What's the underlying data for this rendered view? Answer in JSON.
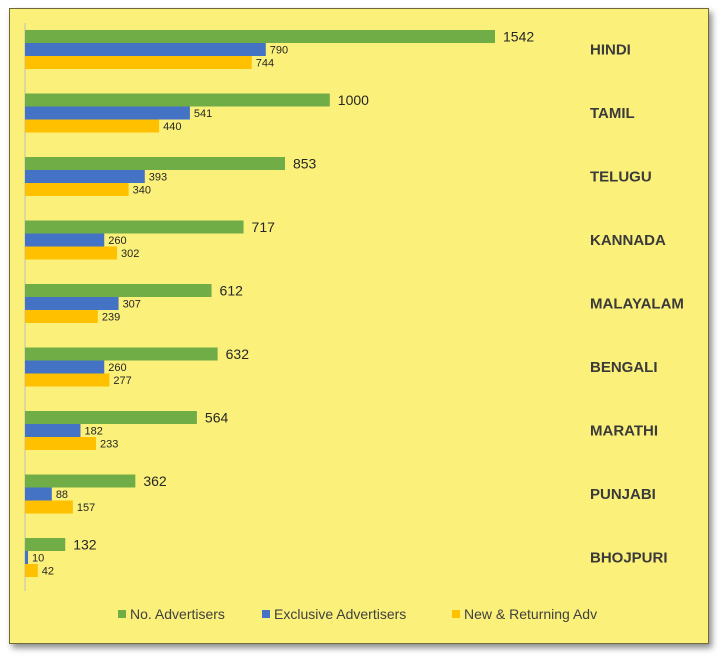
{
  "chart_data": {
    "type": "bar",
    "orientation": "horizontal",
    "categories": [
      "HINDI",
      "TAMIL",
      "TELUGU",
      "KANNADA",
      "MALAYALAM",
      "BENGALI",
      "MARATHI",
      "PUNJABI",
      "BHOJPURI"
    ],
    "series": [
      {
        "name": "No. Advertisers",
        "color": "#70ad47",
        "values": [
          1542,
          1000,
          853,
          717,
          612,
          632,
          564,
          362,
          132
        ]
      },
      {
        "name": "Exclusive Advertisers",
        "color": "#4472c4",
        "values": [
          790,
          541,
          393,
          260,
          307,
          260,
          182,
          88,
          10
        ]
      },
      {
        "name": "New & Returning Adv",
        "color": "#ffc000",
        "values": [
          744,
          440,
          340,
          302,
          239,
          277,
          233,
          157,
          42
        ]
      }
    ],
    "title": "",
    "xlabel": "",
    "ylabel": "",
    "xlim": [
      0,
      1700
    ],
    "grid": false,
    "legend_position": "bottom",
    "data_labels": true,
    "background_color": "#fbf17a"
  }
}
